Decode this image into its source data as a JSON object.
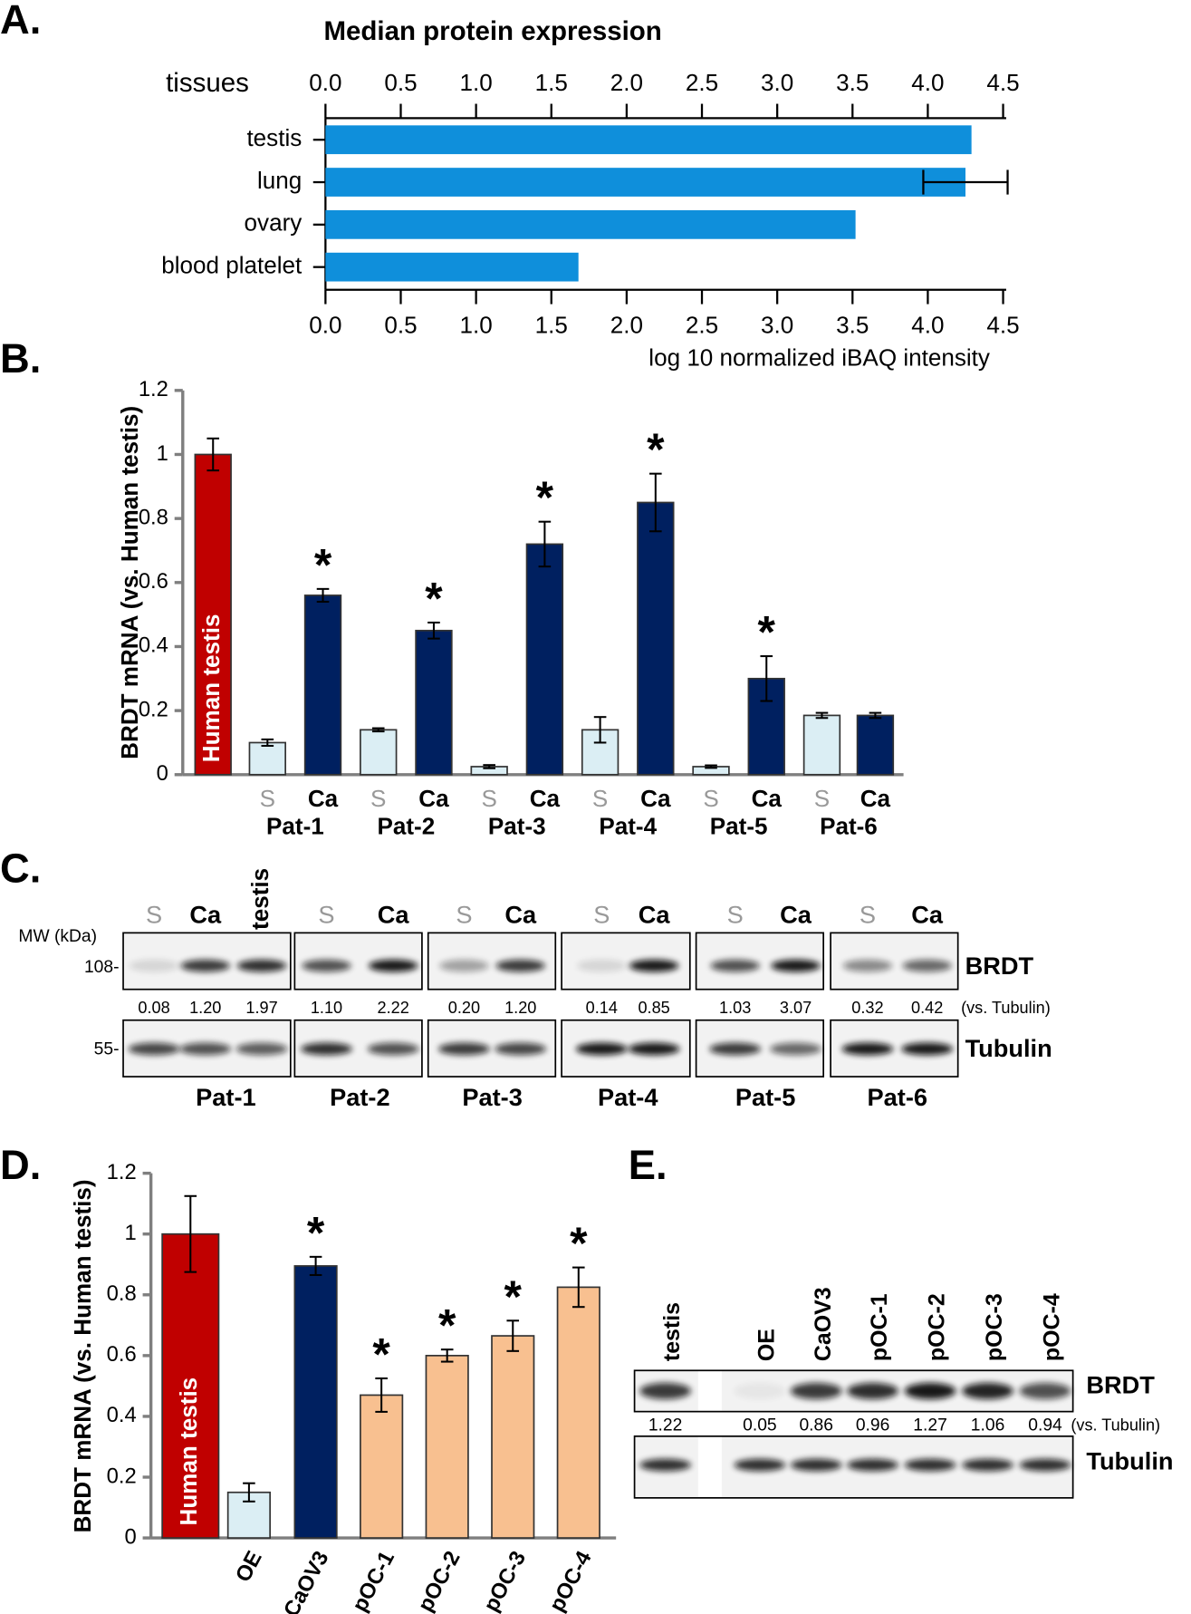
{
  "chart_data": [
    {
      "panel": "A.",
      "type": "hbar",
      "title": "Median protein expression",
      "ylabel": "tissues",
      "xlabel": "log 10 normalized iBAQ intensity",
      "categories": [
        "testis",
        "lung",
        "ovary",
        "blood platelet"
      ],
      "values": [
        4.29,
        4.25,
        3.52,
        1.68
      ],
      "errors": [
        null,
        0.28,
        null,
        null
      ],
      "color": "#0f8fdb",
      "xlim": [
        0,
        4.5
      ],
      "xticks": [
        {
          "value": 0,
          "label": "0.0"
        },
        0.5,
        {
          "value": 1,
          "label": "1.0"
        },
        1.5,
        {
          "value": 2,
          "label": "2.0"
        },
        2.5,
        {
          "value": 3,
          "label": "3.0"
        },
        3.5,
        {
          "value": 4,
          "label": "4.0"
        },
        4.5
      ]
    },
    {
      "panel": "B.",
      "type": "bar",
      "ylabel": "BRDT mRNA (vs. Human testis)",
      "categories": [
        null,
        "S",
        "Ca",
        "S",
        "Ca",
        "S",
        "Ca",
        "S",
        "Ca",
        "S",
        "Ca",
        "S",
        "Ca"
      ],
      "groups": [
        "Pat-1",
        "Pat-2",
        "Pat-3",
        "Pat-4",
        "Pat-5",
        "Pat-6"
      ],
      "bar_labels": [
        "Human testis",
        null,
        null,
        null,
        null,
        null,
        null,
        null,
        null,
        null,
        null,
        null,
        null
      ],
      "values": [
        1.0,
        0.1,
        0.56,
        0.14,
        0.45,
        0.025,
        0.72,
        0.14,
        0.85,
        0.025,
        0.3,
        0.185,
        0.185
      ],
      "errors": [
        0.05,
        0.01,
        0.02,
        0.005,
        0.025,
        0.005,
        0.07,
        0.04,
        0.09,
        0.004,
        0.07,
        0.008,
        0.008
      ],
      "significance": [
        null,
        null,
        "*",
        null,
        "*",
        null,
        "*",
        null,
        "*",
        null,
        "*",
        null,
        null
      ],
      "colors": [
        "#c00000",
        "#dbeef4",
        "#002060",
        "#dbeef4",
        "#002060",
        "#dbeef4",
        "#002060",
        "#dbeef4",
        "#002060",
        "#dbeef4",
        "#002060",
        "#dbeef4",
        "#002060"
      ],
      "ylim": [
        0,
        1.2
      ],
      "yticks": [
        0,
        0.2,
        0.4,
        0.6,
        0.8,
        1,
        1.2
      ]
    },
    {
      "panel": "D.",
      "type": "bar",
      "ylabel": "BRDT mRNA (vs. Human testis)",
      "categories": [
        null,
        "OE",
        "CaOV3",
        "pOC-1",
        "pOC-2",
        "pOC-3",
        "pOC-4"
      ],
      "bar_labels": [
        "Human testis",
        null,
        null,
        null,
        null,
        null,
        null
      ],
      "values": [
        1.0,
        0.15,
        0.895,
        0.47,
        0.6,
        0.665,
        0.825
      ],
      "errors": [
        0.125,
        0.03,
        0.03,
        0.055,
        0.02,
        0.05,
        0.065
      ],
      "significance": [
        null,
        null,
        "*",
        "*",
        "*",
        "*",
        "*"
      ],
      "colors": [
        "#c00000",
        "#dbeef4",
        "#002060",
        "#f8c090",
        "#f8c090",
        "#f8c090",
        "#f8c090"
      ],
      "ylim": [
        0,
        1.2
      ],
      "yticks": [
        0,
        0.2,
        0.4,
        0.6,
        0.8,
        1,
        1.2
      ]
    }
  ],
  "blots": [
    {
      "panel": "C.",
      "mw_label": "MW (kDa)",
      "markers": [
        "108-",
        "55-"
      ],
      "proteins": [
        "BRDT",
        "Tubulin"
      ],
      "lanes": [
        "S",
        "Ca",
        "testis",
        "S",
        "Ca",
        "S",
        "Ca",
        "S",
        "Ca",
        "S",
        "Ca",
        "S",
        "Ca"
      ],
      "quant": [
        "0.08",
        "1.20",
        "1.97",
        "1.10",
        "2.22",
        "0.20",
        "1.20",
        "0.14",
        "0.85",
        "1.03",
        "3.07",
        "0.32",
        "0.42"
      ],
      "quant_unit": "(vs. Tubulin)",
      "groups": [
        "Pat-1",
        "Pat-2",
        "Pat-3",
        "Pat-4",
        "Pat-5",
        "Pat-6"
      ]
    },
    {
      "panel": "E.",
      "proteins": [
        "BRDT",
        "Tubulin"
      ],
      "lanes": [
        "testis",
        "OE",
        "CaOV3",
        "pOC-1",
        "pOC-2",
        "pOC-3",
        "pOC-4"
      ],
      "quant": [
        "1.22",
        "0.05",
        "0.86",
        "0.96",
        "1.27",
        "1.06",
        "0.94"
      ],
      "quant_unit": "(vs. Tubulin)"
    }
  ]
}
